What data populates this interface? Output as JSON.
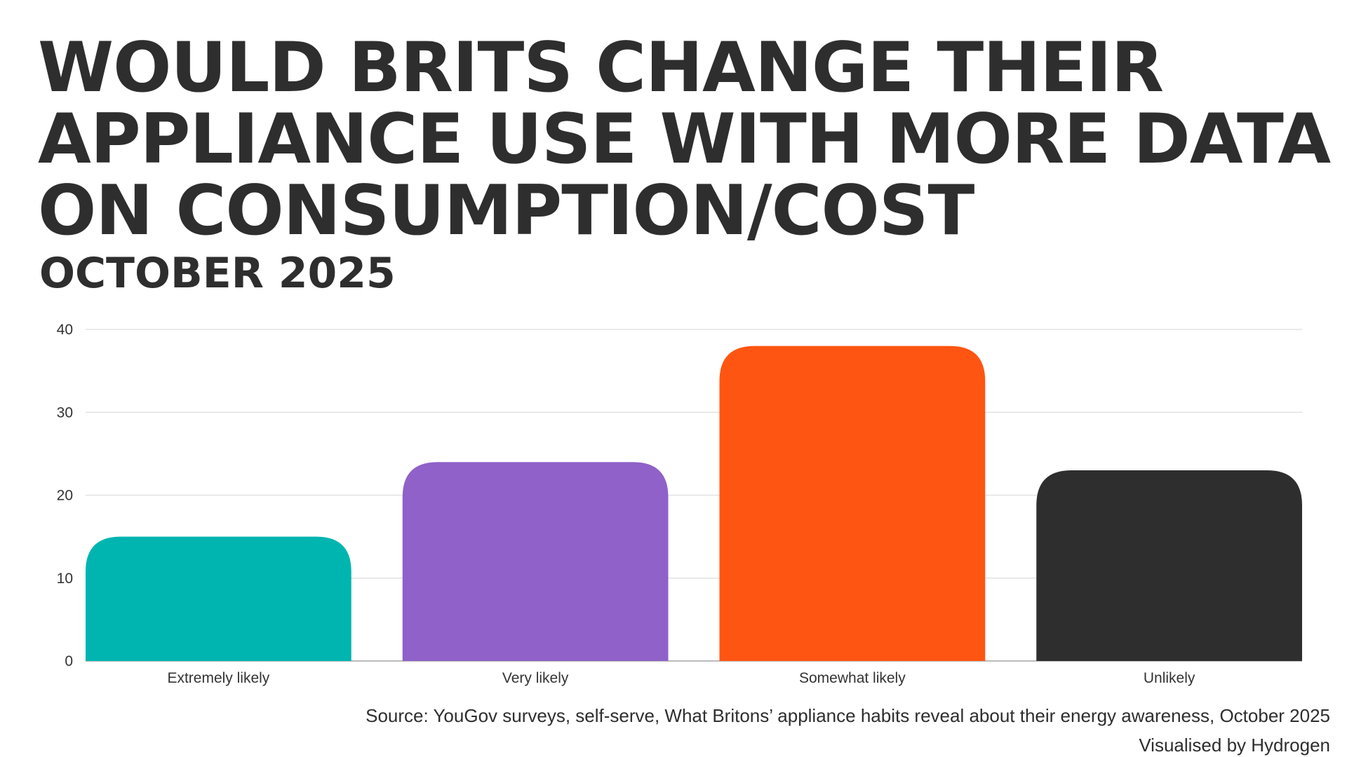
{
  "chart_data": {
    "type": "bar",
    "title": "WOULD BRITS CHANGE THEIR APPLIANCE USE WITH MORE DATA ON CONSUMPTION/COST",
    "subtitle": "OCTOBER 2025",
    "categories": [
      "Extremely likely",
      "Very likely",
      "Somewhat likely",
      "Unlikely"
    ],
    "values": [
      15,
      24,
      38,
      23
    ],
    "colors": [
      "#00b5b0",
      "#8f61c9",
      "#ff5512",
      "#2e2e2e"
    ],
    "xlabel": "",
    "ylabel": "",
    "ylim": [
      0,
      40
    ],
    "yticks": [
      0,
      10,
      20,
      30,
      40
    ],
    "grid": true,
    "source": "Source: YouGov surveys, self-serve, What Britons’ appliance habits reveal about their energy awareness, October 2025",
    "credit": "Visualised by Hydrogen"
  }
}
